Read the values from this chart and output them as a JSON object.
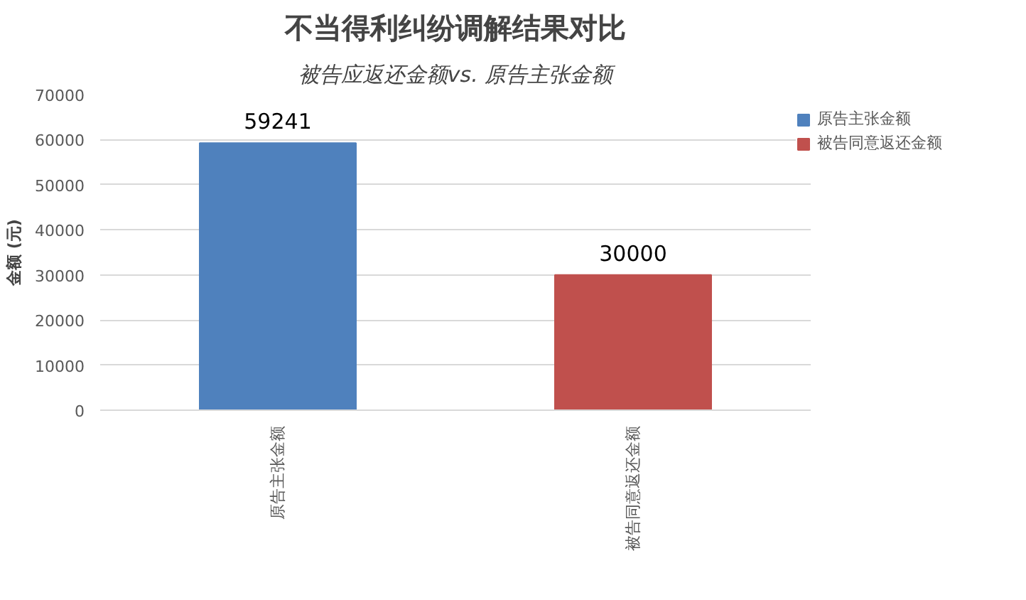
{
  "chart_data": {
    "type": "bar",
    "title": "不当得利纠纷调解结果对比",
    "subtitle": "被告应返还金额vs. 原告主张金额",
    "ylabel": "金额 (元)",
    "categories": [
      "原告主张金额",
      "被告同意返还金额"
    ],
    "series": [
      {
        "name": "原告主张金额",
        "color": "#4f81bd",
        "values": [
          59241,
          null
        ]
      },
      {
        "name": "被告同意返还金额",
        "color": "#c0504d",
        "values": [
          null,
          30000
        ]
      }
    ],
    "ylim": [
      0,
      70000
    ],
    "yticks": [
      0,
      10000,
      20000,
      30000,
      40000,
      50000,
      60000,
      70000
    ],
    "grid": "y",
    "legend": "right",
    "data_labels": true
  }
}
